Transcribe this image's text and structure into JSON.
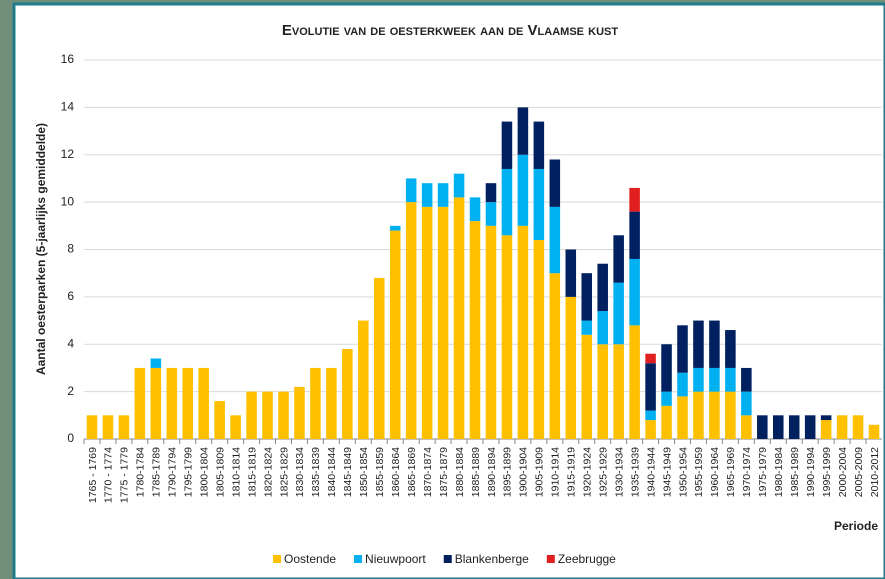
{
  "chart_data": {
    "type": "stacked-bar",
    "title": "Evolutie van de oesterkweek aan de Vlaamse kust",
    "y_label": "Aantal oesterparken (5-jaarlijks gemiddelde)",
    "x_label": "Periode",
    "categories": [
      "1765 - 1769",
      "1770 - 1774",
      "1775 - 1779",
      "1780-1784",
      "1785-1789",
      "1790-1794",
      "1795-1799",
      "1800-1804",
      "1805-1809",
      "1810-1814",
      "1815-1819",
      "1820-1824",
      "1825-1829",
      "1830-1834",
      "1835-1839",
      "1840-1844",
      "1845-1849",
      "1850-1854",
      "1855-1859",
      "1860-1864",
      "1865-1869",
      "1870-1874",
      "1875-1879",
      "1880-1884",
      "1885-1889",
      "1890-1894",
      "1895-1899",
      "1900-1904",
      "1905-1909",
      "1910-1914",
      "1915-1919",
      "1920-1924",
      "1925-1929",
      "1930-1934",
      "1935-1939",
      "1940-1944",
      "1945-1949",
      "1950-1954",
      "1955-1959",
      "1960-1964",
      "1965-1969",
      "1970-1974",
      "1975-1979",
      "1980-1984",
      "1985-1989",
      "1990-1994",
      "1995-1999",
      "2000-2004",
      "2005-2009",
      "2010-2012"
    ],
    "series": [
      {
        "name": "Oostende",
        "color": "#ffc000",
        "values": [
          1,
          1,
          1,
          3,
          3,
          3,
          3,
          3,
          1.6,
          1,
          2,
          2,
          2,
          2.2,
          3,
          3,
          3.8,
          5,
          6.8,
          8.8,
          10,
          9.8,
          9.8,
          10.2,
          9.2,
          9,
          8.6,
          9,
          8.4,
          7,
          6,
          4.4,
          4,
          4,
          4.8,
          0.8,
          1.4,
          1.8,
          2,
          2,
          2,
          1,
          0,
          0,
          0,
          0,
          0.8,
          1,
          1,
          0.6
        ]
      },
      {
        "name": "Nieuwpoort",
        "color": "#00b0f0",
        "values": [
          0,
          0,
          0,
          0,
          0.4,
          0,
          0,
          0,
          0,
          0,
          0,
          0,
          0,
          0,
          0,
          0,
          0,
          0,
          0,
          0.2,
          1,
          1,
          1,
          1,
          1,
          1,
          2.8,
          3,
          3,
          2.8,
          0,
          0.6,
          1.4,
          2.6,
          2.8,
          0.4,
          0.6,
          1,
          1,
          1,
          1,
          1,
          0,
          0,
          0,
          0,
          0,
          0,
          0,
          0
        ]
      },
      {
        "name": "Blankenberge",
        "color": "#002060",
        "values": [
          0,
          0,
          0,
          0,
          0,
          0,
          0,
          0,
          0,
          0,
          0,
          0,
          0,
          0,
          0,
          0,
          0,
          0,
          0,
          0,
          0,
          0,
          0,
          0,
          0,
          0.8,
          2,
          2,
          2,
          2,
          2,
          2,
          2,
          2,
          2,
          2,
          2,
          2,
          2,
          2,
          1.6,
          1,
          1,
          1,
          1,
          1,
          0.2,
          0,
          0,
          0
        ]
      },
      {
        "name": "Zeebrugge",
        "color": "#e02020",
        "values": [
          0,
          0,
          0,
          0,
          0,
          0,
          0,
          0,
          0,
          0,
          0,
          0,
          0,
          0,
          0,
          0,
          0,
          0,
          0,
          0,
          0,
          0,
          0,
          0,
          0,
          0,
          0,
          0,
          0,
          0,
          0,
          0,
          0,
          0,
          1,
          0.4,
          0,
          0,
          0,
          0,
          0,
          0,
          0,
          0,
          0,
          0,
          0,
          0,
          0,
          0
        ]
      }
    ],
    "ylim": [
      0,
      16
    ],
    "yticks": [
      0,
      2,
      4,
      6,
      8,
      10,
      12,
      14,
      16
    ],
    "grid": true,
    "legend": "bottom"
  }
}
